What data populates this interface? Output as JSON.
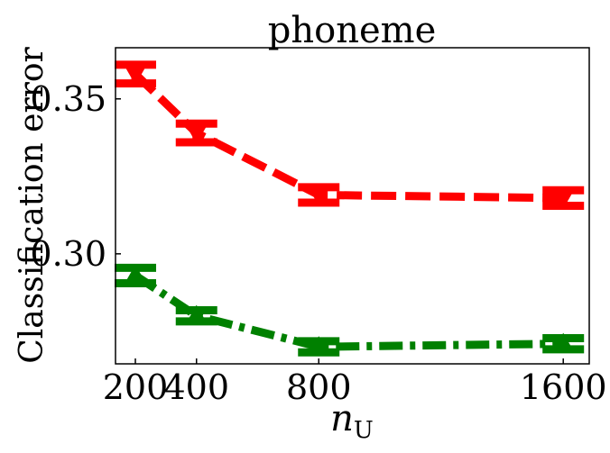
{
  "chart_data": {
    "type": "line",
    "title": "phoneme",
    "xlabel": "n",
    "xlabel_subscript": "U",
    "ylabel": "Classification error",
    "x": [
      200,
      400,
      800,
      1600
    ],
    "x_tick_labels": [
      "200",
      "400",
      "800",
      "1600"
    ],
    "y_ticks": [
      0.3,
      0.35
    ],
    "y_tick_labels": [
      "0.30",
      "0.35"
    ],
    "xlim": [
      135,
      1685
    ],
    "ylim": [
      0.2645,
      0.3665
    ],
    "grid": false,
    "legend": "none",
    "series": [
      {
        "color": "#ff0000",
        "line_style": "dashed",
        "marker": "triangle-down",
        "values": [
          0.358,
          0.339,
          0.319,
          0.318
        ],
        "errors": [
          0.003,
          0.003,
          0.0025,
          0.0025
        ]
      },
      {
        "color": "#008000",
        "line_style": "dash-dot",
        "marker": "triangle-up",
        "values": [
          0.293,
          0.28,
          0.27,
          0.271
        ],
        "errors": [
          0.0025,
          0.0018,
          0.0018,
          0.0018
        ]
      }
    ]
  }
}
